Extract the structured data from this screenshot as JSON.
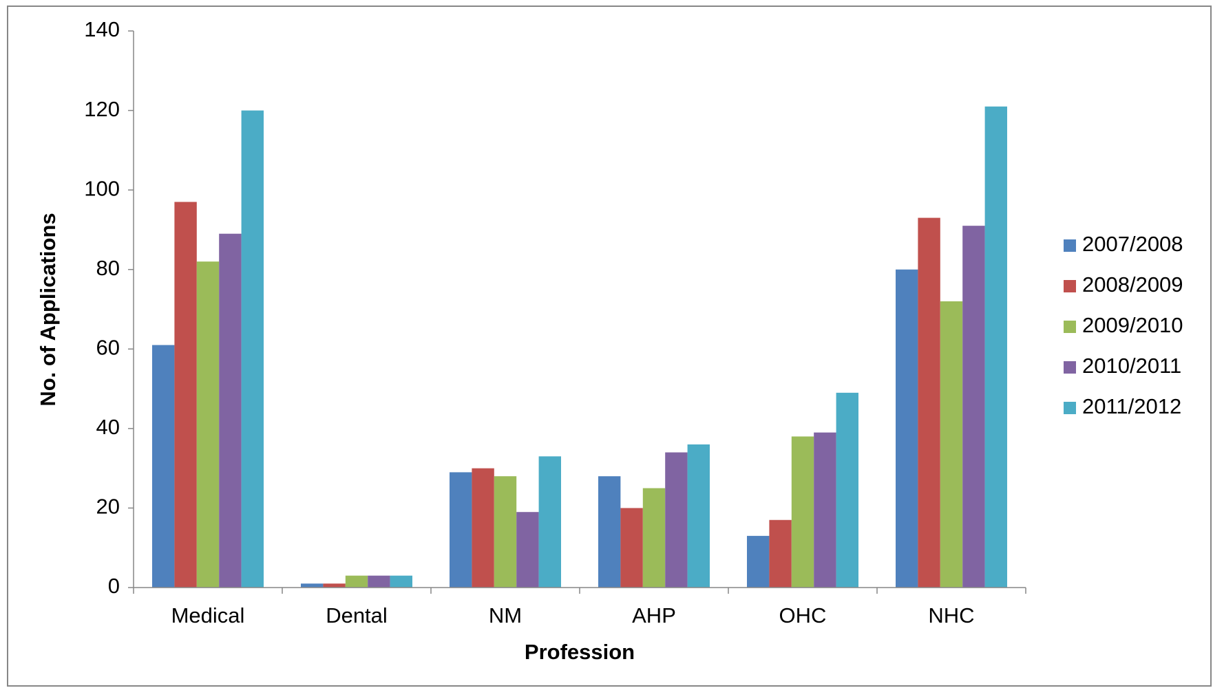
{
  "chart_data": {
    "type": "bar",
    "x_label": "Profession",
    "y_label": "No. of Applications",
    "categories": [
      "Medical",
      "Dental",
      "NM",
      "AHP",
      "OHC",
      "NHC"
    ],
    "series": [
      {
        "name": "2007/2008",
        "color": "#4f81bd",
        "values": [
          61,
          1,
          29,
          28,
          13,
          80
        ]
      },
      {
        "name": "2008/2009",
        "color": "#c0504d",
        "values": [
          97,
          1,
          30,
          20,
          17,
          93
        ]
      },
      {
        "name": "2009/2010",
        "color": "#9bbb59",
        "values": [
          82,
          3,
          28,
          25,
          38,
          72
        ]
      },
      {
        "name": "2010/2011",
        "color": "#8064a2",
        "values": [
          89,
          3,
          19,
          34,
          39,
          91
        ]
      },
      {
        "name": "2011/2012",
        "color": "#4bacc6",
        "values": [
          120,
          3,
          33,
          36,
          49,
          121
        ]
      }
    ],
    "ylim": [
      0,
      140
    ],
    "yticks": [
      0,
      20,
      40,
      60,
      80,
      100,
      120,
      140
    ],
    "grid": false,
    "legend": "right"
  }
}
